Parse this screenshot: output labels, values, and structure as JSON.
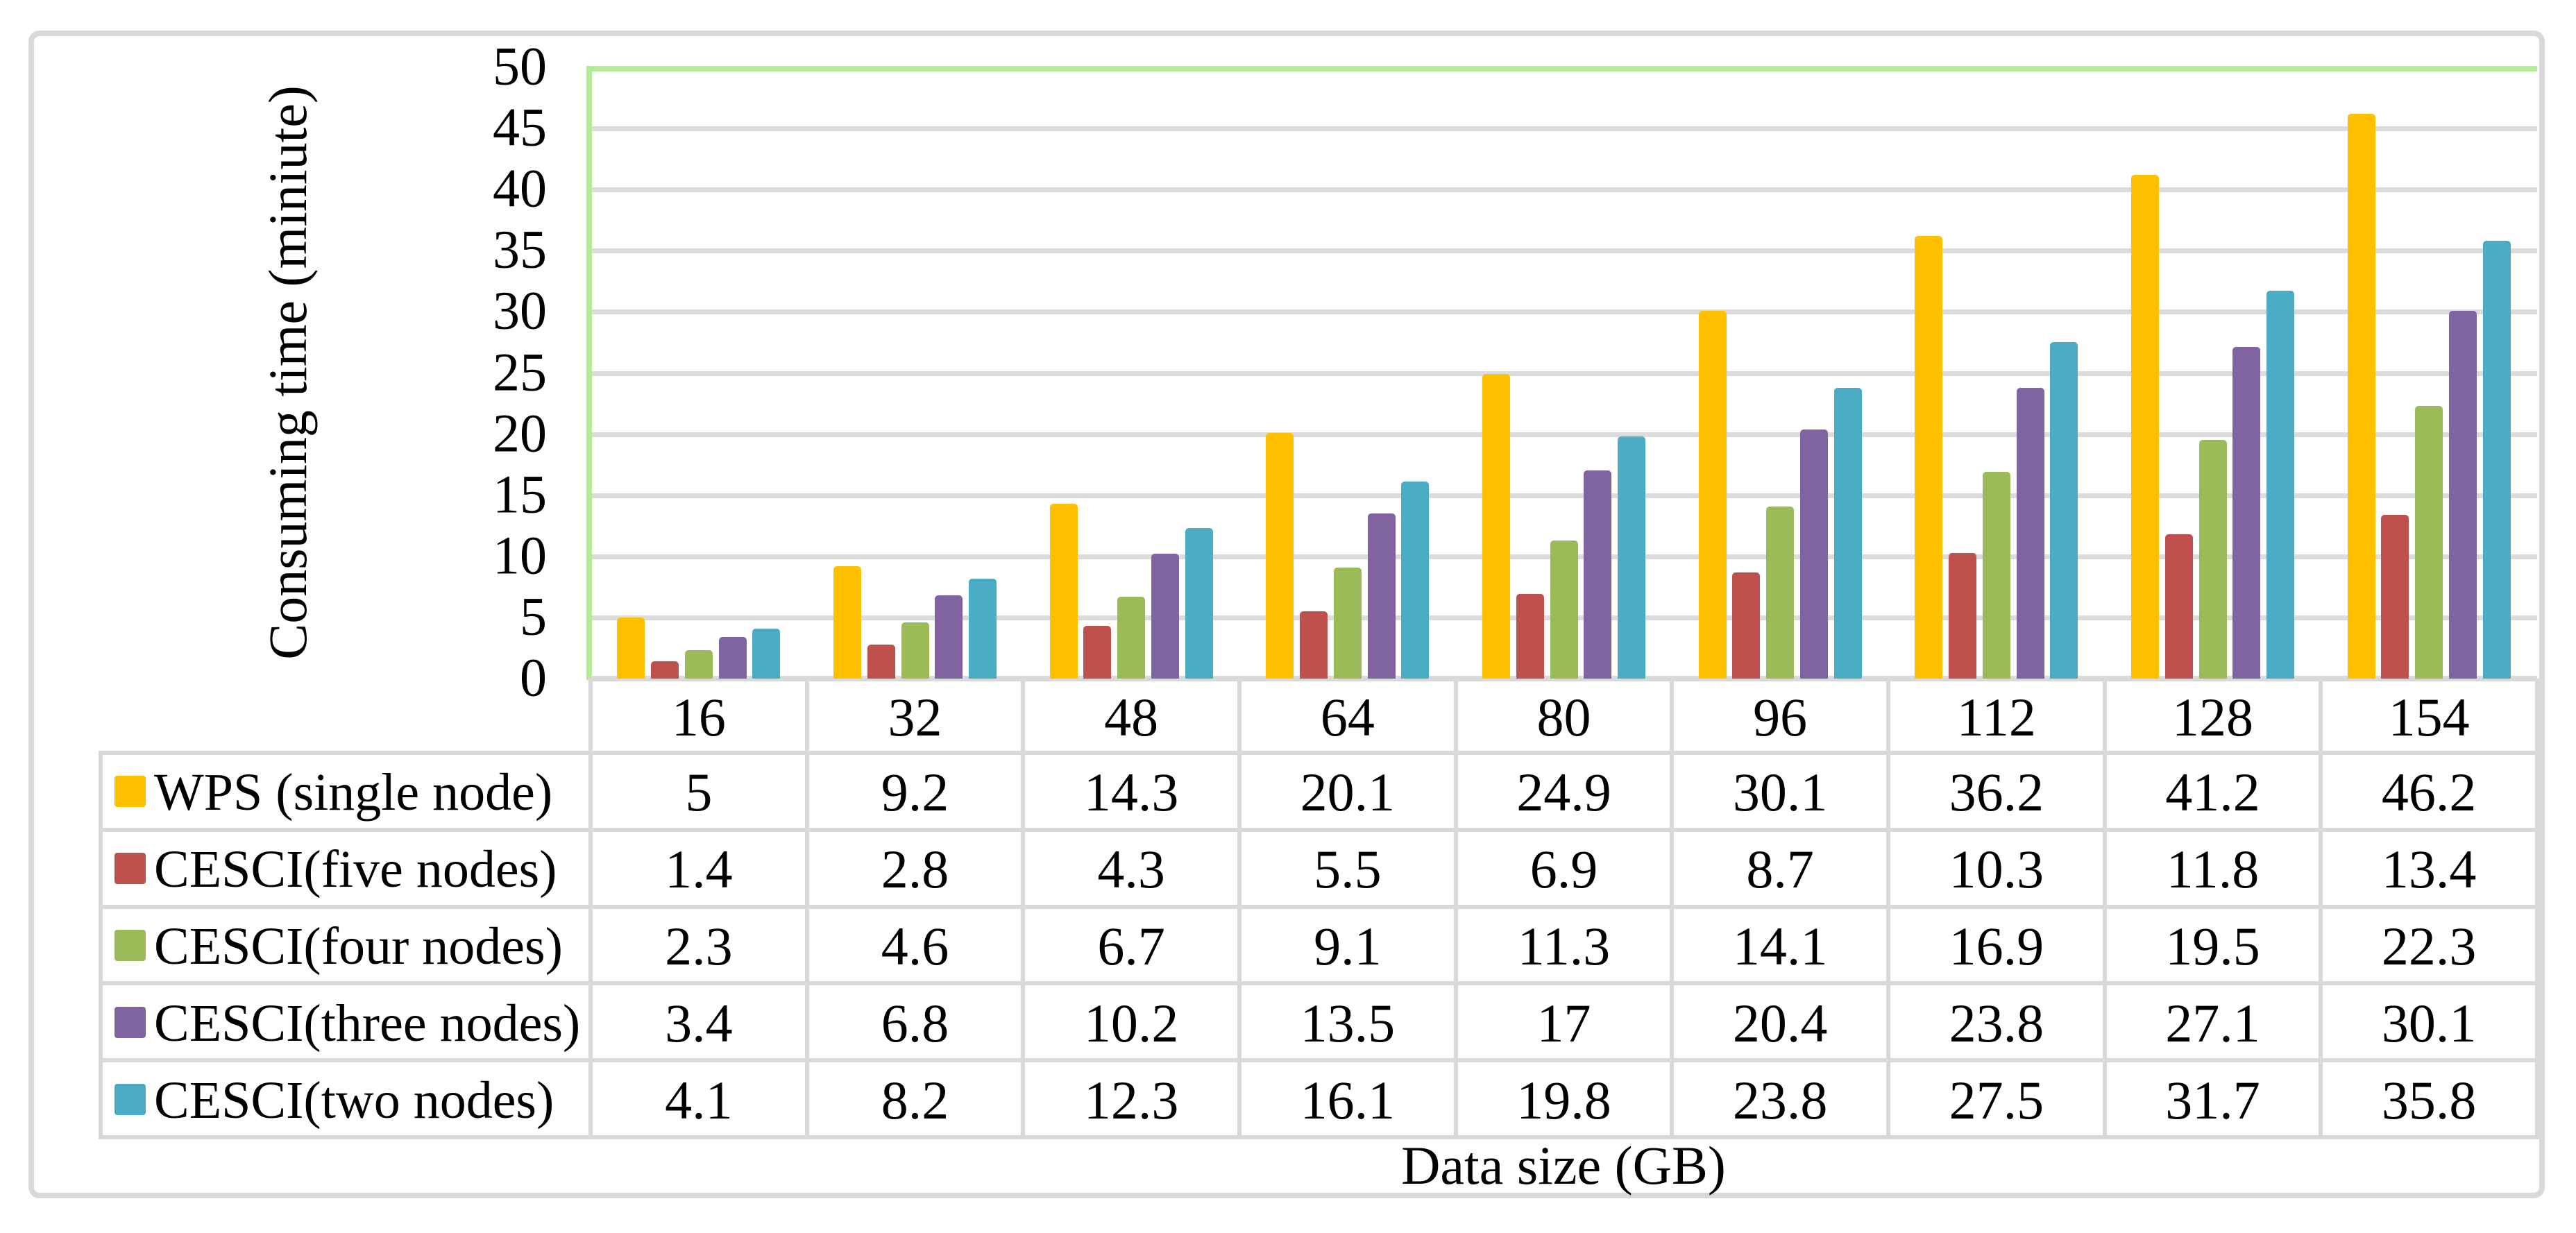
{
  "chart_data": {
    "type": "bar",
    "title": "",
    "xlabel": "Data size (GB)",
    "ylabel": "Consuming time (miniute)",
    "ylim": [
      0,
      50
    ],
    "ytick_step": 5,
    "grid": true,
    "legend_position": "table-left-column",
    "categories": [
      "16",
      "32",
      "48",
      "64",
      "80",
      "96",
      "112",
      "128",
      "154"
    ],
    "series": [
      {
        "name": "WPS (single node)",
        "color": "#FFC000",
        "values": [
          5,
          9.2,
          14.3,
          20.1,
          24.9,
          30.1,
          36.2,
          41.2,
          46.2
        ]
      },
      {
        "name": "CESCI(five nodes)",
        "color": "#C0504D",
        "values": [
          1.4,
          2.8,
          4.3,
          5.5,
          6.9,
          8.7,
          10.3,
          11.8,
          13.4
        ]
      },
      {
        "name": "CESCI(four nodes)",
        "color": "#9BBB59",
        "values": [
          2.3,
          4.6,
          6.7,
          9.1,
          11.3,
          14.1,
          16.9,
          19.5,
          22.3
        ]
      },
      {
        "name": "CESCI(three nodes)",
        "color": "#8064A2",
        "values": [
          3.4,
          6.8,
          10.2,
          13.5,
          17,
          20.4,
          23.8,
          27.1,
          30.1
        ]
      },
      {
        "name": "CESCI(two nodes)",
        "color": "#4BACC6",
        "values": [
          4.1,
          8.2,
          12.3,
          16.1,
          19.8,
          23.8,
          27.5,
          31.7,
          35.8
        ]
      }
    ],
    "colors": {
      "plot_border_green": "#B3EC94",
      "gridline_gray": "#DCDCDC",
      "table_border_gray": "#D9D9D9",
      "figure_border_gray": "#D9D9D9",
      "text_black": "#000000"
    }
  }
}
